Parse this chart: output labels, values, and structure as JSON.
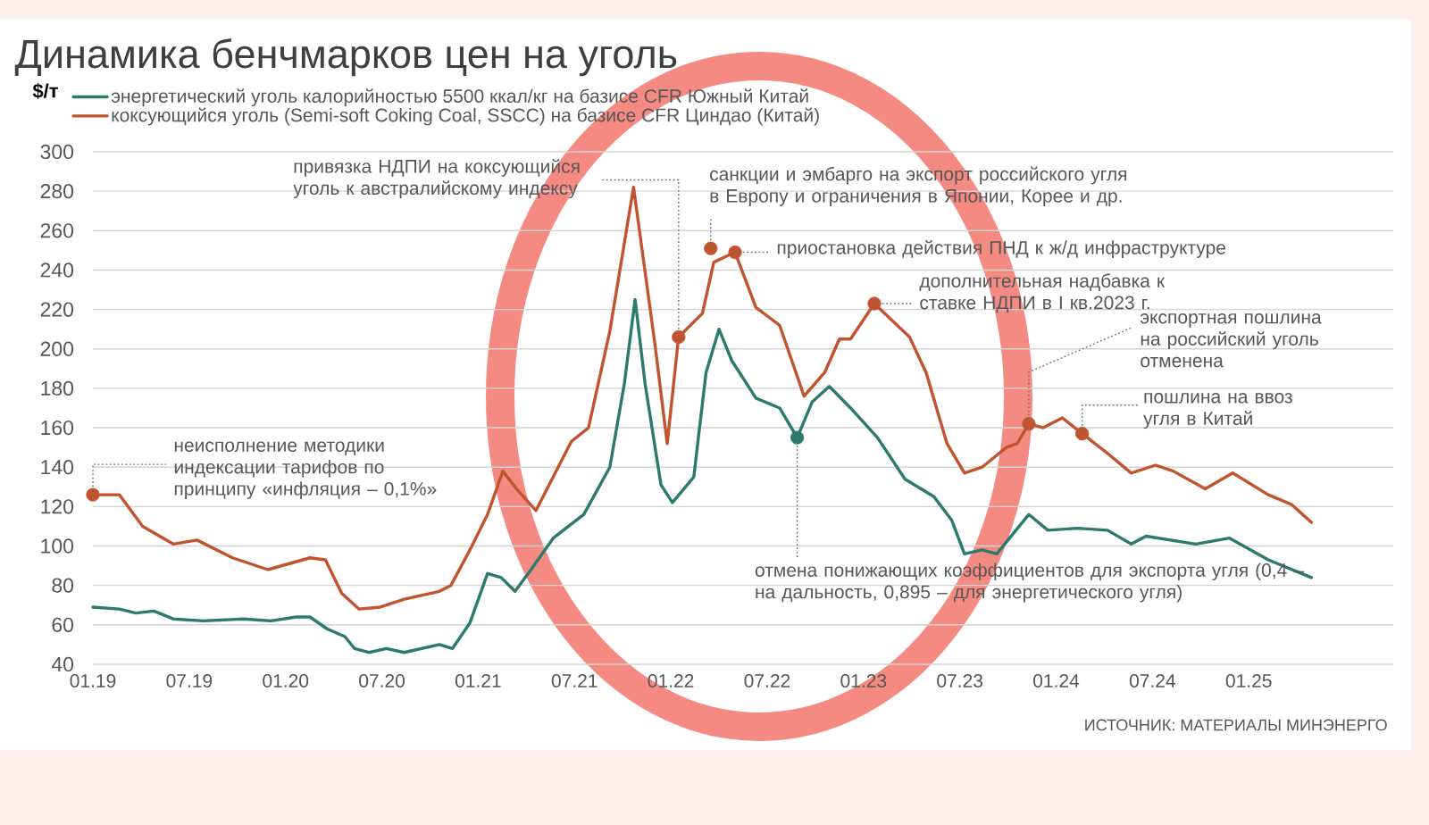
{
  "chart_data": {
    "type": "line",
    "title": "Динамика бенчмарков цен на уголь",
    "ylabel": "$/т",
    "legend": "top left",
    "grid": "y",
    "xlim": [
      "2019-01",
      "2025-10"
    ],
    "xticks": [
      {
        "value": "2019-01",
        "label": "01.19"
      },
      {
        "value": "2019-07",
        "label": "07.19"
      },
      {
        "value": "2020-01",
        "label": "01.20"
      },
      {
        "value": "2020-07",
        "label": "07.20"
      },
      {
        "value": "2021-01",
        "label": "01.21"
      },
      {
        "value": "2021-07",
        "label": "07.21"
      },
      {
        "value": "2022-01",
        "label": "01.22"
      },
      {
        "value": "2022-07",
        "label": "07.22"
      },
      {
        "value": "2023-01",
        "label": "01.23"
      },
      {
        "value": "2023-07",
        "label": "07.23"
      },
      {
        "value": "2024-01",
        "label": "01.24"
      },
      {
        "value": "2024-07",
        "label": "07.24"
      },
      {
        "value": "2025-01",
        "label": "01.25"
      }
    ],
    "ylim": [
      40,
      300
    ],
    "yticks": [
      40,
      60,
      80,
      100,
      120,
      140,
      160,
      180,
      200,
      220,
      240,
      260,
      280,
      300
    ],
    "series": [
      {
        "name": "энергетический уголь калорийностью 5500 ккал/кг на базисе CFR Южный Китай",
        "color": "#2b7a6d",
        "x": [
          "2019-01",
          "2019-02-19",
          "2019-03-22",
          "2019-04-25",
          "2019-06",
          "2019-07-28",
          "2019-10-13",
          "2019-12-04",
          "2020-01-22",
          "2020-02-16",
          "2020-03-19",
          "2020-04-22",
          "2020-05-10",
          "2020-06-07",
          "2020-07-10",
          "2020-08-13",
          "2020-10-19",
          "2020-11-13",
          "2020-12-16",
          "2021-01-19",
          "2021-02-13",
          "2021-03-10",
          "2021-04-07",
          "2021-05-22",
          "2021-07-19",
          "2021-09-07",
          "2021-10-04",
          "2021-10-25",
          "2021-11-13",
          "2021-12-13",
          "2022-01-04",
          "2022-02-13",
          "2022-03-07",
          "2022-04",
          "2022-04-25",
          "2022-06-10",
          "2022-07-25",
          "2022-08-28",
          "2022-09-25",
          "2022-10-28",
          "2022-12-07",
          "2023-01-28",
          "2023-03-19",
          "2023-05-13",
          "2023-06-16",
          "2023-07-10",
          "2023-08-13",
          "2023-09-10",
          "2023-11-10",
          "2023-12-16",
          "2024-02-10",
          "2024-04-07",
          "2024-05-22",
          "2024-06-19",
          "2024-09-22",
          "2024-11-25",
          "2025-02-07",
          "2025-04-28"
        ],
        "values": [
          69,
          68,
          66,
          67,
          63,
          62,
          63,
          62,
          64,
          64,
          58,
          54,
          48,
          46,
          48,
          46,
          50,
          48,
          61,
          86,
          84,
          77,
          87,
          104,
          116,
          140,
          182,
          225,
          182,
          131,
          122,
          135,
          188,
          210,
          194,
          175,
          170,
          155,
          173,
          181,
          170,
          155,
          134,
          125,
          113,
          96,
          98,
          96,
          116,
          108,
          109,
          108,
          101,
          105,
          101,
          104,
          93,
          84
        ]
      },
      {
        "name": "коксующийся уголь (Semi-soft Coking Coal, SSCC) на базисе CFR Циндао (Китай)",
        "color": "#c2532f",
        "x": [
          "2019-01",
          "2019-02-19",
          "2019-04-04",
          "2019-06",
          "2019-07-16",
          "2019-09-22",
          "2019-11-28",
          "2020-02-16",
          "2020-03-16",
          "2020-04-16",
          "2020-05-19",
          "2020-06-28",
          "2020-08-13",
          "2020-10-19",
          "2020-11-10",
          "2020-12-16",
          "2021-01-19",
          "2021-02-16",
          "2021-03-16",
          "2021-04-19",
          "2021-06-25",
          "2021-07-28",
          "2021-09-07",
          "2021-10-22",
          "2021-12",
          "2021-12-25",
          "2022-01-16",
          "2022-02-28",
          "2022-03-22",
          "2022-05",
          "2022-06-10",
          "2022-07-25",
          "2022-09-10",
          "2022-10-19",
          "2022-11-16",
          "2022-12-07",
          "2023-01-22",
          "2023-03-28",
          "2023-04-28",
          "2023-06-07",
          "2023-07-10",
          "2023-08-13",
          "2023-09-28",
          "2023-10-19",
          "2023-11-10",
          "2023-12-07",
          "2024-01-13",
          "2024-02-19",
          "2024-04-07",
          "2024-05-22",
          "2024-07-07",
          "2024-08-10",
          "2024-10-10",
          "2024-12",
          "2025-02-07",
          "2025-03-22",
          "2025-04-28"
        ],
        "values": [
          126,
          126,
          110,
          101,
          103,
          94,
          88,
          94,
          93,
          76,
          68,
          69,
          73,
          77,
          80,
          98,
          116,
          138,
          128,
          118,
          153,
          160,
          209,
          282,
          203,
          152,
          206,
          218,
          244,
          249,
          221,
          212,
          176,
          188,
          205,
          205,
          223,
          206,
          188,
          152,
          137,
          140,
          150,
          152,
          162,
          160,
          165,
          157,
          147,
          137,
          141,
          138,
          129,
          137,
          126,
          121,
          112
        ]
      },
      {
        "type": "scatter",
        "marker": "circle",
        "color": "#c2532f",
        "x": [
          "2019-01",
          "2022-01-16",
          "2022-03-16",
          "2022-05",
          "2023-01-22",
          "2023-11-10",
          "2024-02-19"
        ],
        "values": [
          126,
          206,
          251,
          249,
          223,
          162,
          157
        ]
      },
      {
        "type": "scatter",
        "marker": "circle",
        "color": "#2b7a6d",
        "x": [
          "2022-08-28"
        ],
        "values": [
          155
        ]
      }
    ],
    "annotations": [
      {
        "text": "неисполнение методики индексации тарифов по принципу «инфляция – 0,1%»",
        "x": "2019-01",
        "y": 126
      },
      {
        "text": "привязка НДПИ на коксующийся уголь к австралийскому индексу",
        "x": "2022-01-16",
        "y": 206
      },
      {
        "text": "санкции и эмбарго на экспорт российского угля в Европу и ограничения в Японии, Корее и др.",
        "x": "2022-03-16",
        "y": 251
      },
      {
        "text": "приостановка действия ПНД к ж/д инфраструктуре",
        "x": "2022-05",
        "y": 249
      },
      {
        "text": "дополнительная надбавка к ставке НДПИ в I кв.2023 г.",
        "x": "2023-01-22",
        "y": 223
      },
      {
        "text": "экспортная пошлина на российский уголь отменена",
        "x": "2023-11-10",
        "y": 162
      },
      {
        "text": "пошлина на ввоз угля в Китай",
        "x": "2024-02-19",
        "y": 157
      },
      {
        "text": "отмена понижающих коэффициентов для экспорта угля (0,4 – на дальность, 0,895 – для энергетического угля)",
        "x": "2022-08-28",
        "y": 155
      },
      "ИСТОЧНИК: МАТЕРИАЛЫ МИНЭНЕРГО"
    ]
  }
}
